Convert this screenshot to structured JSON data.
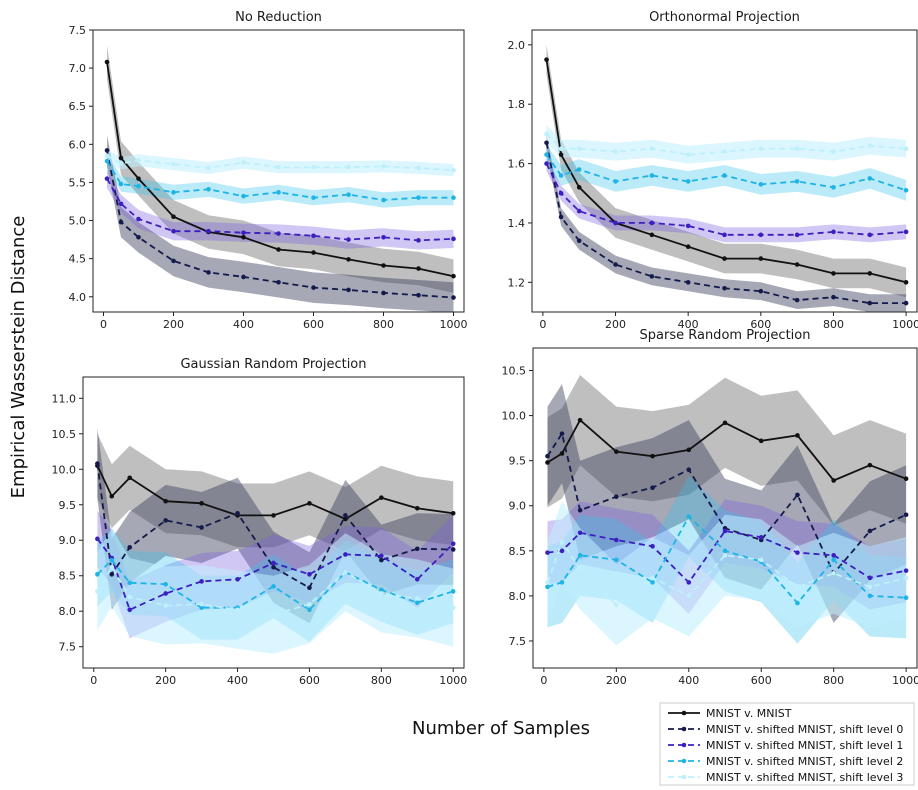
{
  "figure": {
    "ylabel": "Empirical Wasserstein  Distance",
    "xlabel": "Number of Samples"
  },
  "legend": {
    "entries": [
      {
        "label": "MNIST v. MNIST",
        "color": "#111111",
        "dash": "solid"
      },
      {
        "label": "MNIST v. shifted MNIST, shift level 0",
        "color": "#141a4a",
        "dash": "dashed"
      },
      {
        "label": "MNIST v. shifted MNIST, shift level 1",
        "color": "#3b1fc0",
        "dash": "dashed"
      },
      {
        "label": "MNIST v. shifted MNIST, shift level 2",
        "color": "#1eb4e6",
        "dash": "dashed"
      },
      {
        "label": "MNIST v. shifted MNIST, shift level 3",
        "color": "#bdf0fb",
        "dash": "dashed"
      }
    ]
  },
  "chart_data": [
    {
      "type": "line",
      "title": "No Reduction",
      "x": [
        10,
        50,
        100,
        200,
        300,
        400,
        500,
        600,
        700,
        800,
        900,
        1000
      ],
      "xticks": [
        0,
        200,
        400,
        600,
        800,
        1000
      ],
      "ylim": [
        3.8,
        7.5
      ],
      "yticks": [
        "4.0",
        "4.5",
        "5.0",
        "5.5",
        "6.0",
        "6.5",
        "7.0",
        "7.5"
      ],
      "series": [
        {
          "name": "MNIST v. MNIST",
          "values": [
            7.08,
            5.82,
            5.55,
            5.05,
            4.85,
            4.78,
            4.62,
            4.58,
            4.49,
            4.41,
            4.37,
            4.27
          ],
          "band": 0.22
        },
        {
          "name": "MNIST v. shifted MNIST, shift level 0",
          "values": [
            5.92,
            4.98,
            4.78,
            4.47,
            4.32,
            4.26,
            4.19,
            4.12,
            4.09,
            4.05,
            4.02,
            3.99
          ],
          "band": 0.2
        },
        {
          "name": "MNIST v. shifted MNIST, shift level 1",
          "values": [
            5.55,
            5.22,
            5.02,
            4.86,
            4.86,
            4.84,
            4.83,
            4.8,
            4.75,
            4.78,
            4.74,
            4.76
          ],
          "band": 0.12
        },
        {
          "name": "MNIST v. shifted MNIST, shift level 2",
          "values": [
            5.78,
            5.48,
            5.45,
            5.37,
            5.41,
            5.32,
            5.37,
            5.3,
            5.34,
            5.27,
            5.3,
            5.3
          ],
          "band": 0.1
        },
        {
          "name": "MNIST v. shifted MNIST, shift level 3",
          "values": [
            5.85,
            5.75,
            5.79,
            5.74,
            5.69,
            5.76,
            5.7,
            5.7,
            5.7,
            5.71,
            5.69,
            5.66
          ],
          "band": 0.08
        }
      ]
    },
    {
      "type": "line",
      "title": "Orthonormal Projection",
      "x": [
        10,
        50,
        100,
        200,
        300,
        400,
        500,
        600,
        700,
        800,
        900,
        1000
      ],
      "xticks": [
        0,
        200,
        400,
        600,
        800,
        1000
      ],
      "ylim": [
        1.1,
        2.05
      ],
      "yticks": [
        "1.2",
        "1.4",
        "1.6",
        "1.8",
        "2.0"
      ],
      "series": [
        {
          "name": "MNIST v. MNIST",
          "values": [
            1.95,
            1.63,
            1.52,
            1.4,
            1.36,
            1.32,
            1.28,
            1.28,
            1.26,
            1.23,
            1.23,
            1.2
          ],
          "band": 0.05
        },
        {
          "name": "MNIST v. shifted MNIST, shift level 0",
          "values": [
            1.67,
            1.42,
            1.34,
            1.26,
            1.22,
            1.2,
            1.18,
            1.17,
            1.14,
            1.15,
            1.13,
            1.13
          ],
          "band": 0.03
        },
        {
          "name": "MNIST v. shifted MNIST, shift level 1",
          "values": [
            1.6,
            1.5,
            1.44,
            1.4,
            1.4,
            1.39,
            1.36,
            1.36,
            1.36,
            1.37,
            1.36,
            1.37
          ],
          "band": 0.025
        },
        {
          "name": "MNIST v. shifted MNIST, shift level 2",
          "values": [
            1.63,
            1.56,
            1.58,
            1.54,
            1.56,
            1.54,
            1.56,
            1.53,
            1.54,
            1.52,
            1.55,
            1.51
          ],
          "band": 0.035
        },
        {
          "name": "MNIST v. shifted MNIST, shift level 3",
          "values": [
            1.7,
            1.65,
            1.65,
            1.64,
            1.65,
            1.63,
            1.64,
            1.65,
            1.65,
            1.64,
            1.66,
            1.65
          ],
          "band": 0.03
        }
      ]
    },
    {
      "type": "line",
      "title": "Gaussian Random Projection",
      "x": [
        10,
        50,
        100,
        200,
        300,
        400,
        500,
        600,
        700,
        800,
        900,
        1000
      ],
      "xticks": [
        0,
        200,
        400,
        600,
        800,
        1000
      ],
      "ylim": [
        7.2,
        11.3
      ],
      "yticks": [
        "7.5",
        "8.0",
        "8.5",
        "9.0",
        "9.5",
        "10.0",
        "10.5",
        "11.0"
      ],
      "series": [
        {
          "name": "MNIST v. MNIST",
          "values": [
            10.05,
            9.62,
            9.88,
            9.55,
            9.52,
            9.35,
            9.35,
            9.52,
            9.3,
            9.6,
            9.45,
            9.38
          ],
          "band": 0.45
        },
        {
          "name": "MNIST v. shifted MNIST, shift level 0",
          "values": [
            10.08,
            8.52,
            8.9,
            9.28,
            9.18,
            9.38,
            8.62,
            8.33,
            9.35,
            8.72,
            8.88,
            8.87
          ],
          "band": 0.5
        },
        {
          "name": "MNIST v. shifted MNIST, shift level 1",
          "values": [
            9.02,
            8.75,
            8.02,
            8.25,
            8.42,
            8.45,
            8.68,
            8.52,
            8.8,
            8.78,
            8.45,
            8.95
          ],
          "band": 0.4
        },
        {
          "name": "MNIST v. shifted MNIST, shift level 2",
          "values": [
            8.52,
            8.72,
            8.4,
            8.38,
            8.05,
            8.05,
            8.35,
            8.02,
            8.55,
            8.3,
            8.12,
            8.28
          ],
          "band": 0.45
        },
        {
          "name": "MNIST v. shifted MNIST, shift level 3",
          "values": [
            8.28,
            8.62,
            8.2,
            8.08,
            8.1,
            8.02,
            7.95,
            8.1,
            8.55,
            8.25,
            8.18,
            8.05
          ],
          "band": 0.55
        }
      ]
    },
    {
      "type": "line",
      "title": "Sparse Random Projection",
      "x": [
        10,
        50,
        100,
        200,
        300,
        400,
        500,
        600,
        700,
        800,
        900,
        1000
      ],
      "xticks": [
        0,
        200,
        400,
        600,
        800,
        1000
      ],
      "ylim": [
        7.2,
        10.75
      ],
      "yticks": [
        "7.5",
        "8.0",
        "8.5",
        "9.0",
        "9.5",
        "10.0",
        "10.5"
      ],
      "series": [
        {
          "name": "MNIST v. MNIST",
          "values": [
            9.48,
            9.58,
            9.95,
            9.6,
            9.55,
            9.62,
            9.92,
            9.72,
            9.78,
            9.28,
            9.45,
            9.3
          ],
          "band": 0.5
        },
        {
          "name": "MNIST v. shifted MNIST, shift level 0",
          "values": [
            9.55,
            9.8,
            8.95,
            9.1,
            9.2,
            9.4,
            8.75,
            8.62,
            9.12,
            8.25,
            8.72,
            8.9
          ],
          "band": 0.55
        },
        {
          "name": "MNIST v. shifted MNIST, shift level 1",
          "values": [
            8.48,
            8.5,
            8.7,
            8.62,
            8.55,
            8.15,
            8.72,
            8.65,
            8.48,
            8.45,
            8.2,
            8.28
          ],
          "band": 0.35
        },
        {
          "name": "MNIST v. shifted MNIST, shift level 2",
          "values": [
            8.1,
            8.15,
            8.45,
            8.4,
            8.15,
            8.88,
            8.5,
            8.38,
            7.92,
            8.4,
            8.0,
            7.98
          ],
          "band": 0.45
        },
        {
          "name": "MNIST v. shifted MNIST, shift level 3",
          "values": [
            8.15,
            8.6,
            8.3,
            7.9,
            8.2,
            8.0,
            8.45,
            8.4,
            8.1,
            8.25,
            8.1,
            8.2
          ],
          "band": 0.45
        }
      ]
    }
  ]
}
